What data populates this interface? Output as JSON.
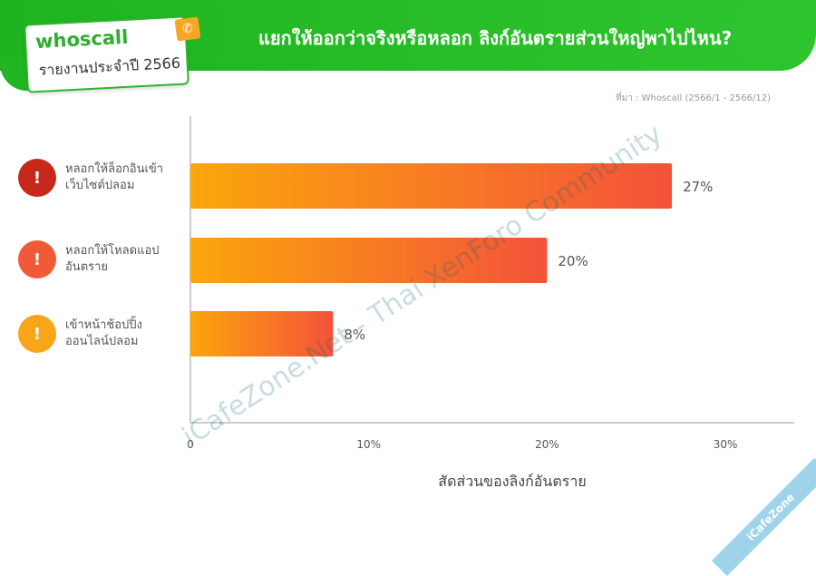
{
  "header": {
    "logo_name": "whoscall",
    "logo_sub": "รายงานประจำปี 2566",
    "title": "แยกให้ออกว่าจริงหรือหลอก ลิงก์อันตรายส่วนใหญ่พาไปไหน?"
  },
  "source": "ที่มา : Whoscall (2566/1 - 2566/12)",
  "watermark": "iCafeZone.Net - Thai XenForo Community",
  "corner_badge": "iCafeZone",
  "colors": {
    "header_green": "#2fc52f",
    "bar_start": "#fba60c",
    "bar_end": "#f4523a",
    "icon1": "#c8281c",
    "icon2": "#f15a36",
    "icon3": "#f9a51a"
  },
  "categories_icons": [
    {
      "icon": "fake-website-alert-icon",
      "label": "หลอกให้ล็อกอินเข้าเว็บไซต์ปลอม"
    },
    {
      "icon": "dangerous-app-download-icon",
      "label": "หลอกให้โหลดแอปอันตราย"
    },
    {
      "icon": "fake-shop-alert-icon",
      "label": "เข้าหน้าช้อปปิ้งออนไลน์ปลอม"
    }
  ],
  "chart_data": {
    "type": "bar",
    "orientation": "horizontal",
    "title": "แยกให้ออกว่าจริงหรือหลอก ลิงก์อันตรายส่วนใหญ่พาไปไหน?",
    "categories": [
      "หลอกให้ล็อกอินเข้าเว็บไซต์ปลอม",
      "หลอกให้โหลดแอปอันตราย",
      "เข้าหน้าช้อปปิ้งออนไลน์ปลอม"
    ],
    "values": [
      27,
      20,
      8
    ],
    "data_labels": [
      "27%",
      "20%",
      "8%"
    ],
    "xlabel": "สัดส่วนของลิงก์อันตราย",
    "ylabel": "",
    "xlim": [
      0,
      34
    ],
    "xticks": [
      0,
      10,
      20,
      30
    ],
    "xtick_labels": [
      "0",
      "10%",
      "20%",
      "30%"
    ],
    "grid": false
  }
}
